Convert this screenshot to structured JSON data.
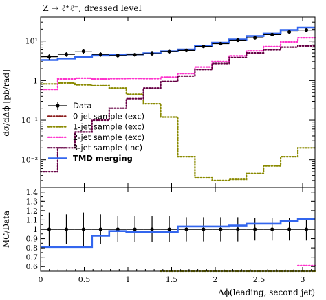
{
  "chart_data": [
    {
      "type": "line",
      "title": "Z → ℓ⁺ℓ⁻, dressed level",
      "ylabel": "dσ/dΔϕ [pb/rad]",
      "xlabel": "",
      "xlim": [
        0,
        3.14159
      ],
      "ylim": [
        0.002,
        40
      ],
      "y_scale": "log",
      "y_ticks": [
        {
          "value": 10,
          "label": "10¹"
        },
        {
          "value": 1,
          "label": "1"
        },
        {
          "value": 0.1,
          "label": "10⁻¹"
        },
        {
          "value": 0.01,
          "label": "10⁻²"
        }
      ],
      "x_edges": [
        0,
        0.1963,
        0.3927,
        0.589,
        0.7854,
        0.9817,
        1.1781,
        1.3744,
        1.5708,
        1.7671,
        1.9635,
        2.1598,
        2.3562,
        2.5525,
        2.7489,
        2.9452,
        3.1416
      ],
      "legend_position": "lower-left",
      "series": [
        {
          "name": "Data",
          "style": "points-errorbars",
          "color": "#000000",
          "x": [
            0.098,
            0.295,
            0.491,
            0.687,
            0.884,
            1.08,
            1.276,
            1.473,
            1.669,
            1.865,
            2.062,
            2.258,
            2.454,
            2.651,
            2.847,
            3.043
          ],
          "y": [
            4.0,
            4.6,
            5.5,
            4.6,
            4.3,
            4.5,
            4.8,
            5.4,
            5.8,
            7.3,
            8.6,
            10.5,
            12.0,
            14.5,
            17.0,
            19.0
          ],
          "y_err": [
            0.6,
            0.6,
            0.7,
            0.6,
            0.5,
            0.5,
            0.6,
            0.6,
            0.6,
            0.7,
            0.8,
            1.0,
            1.1,
            1.3,
            1.5,
            1.7
          ]
        },
        {
          "name": "0-jet sample (exc)",
          "style": "step-dotted",
          "color": "#8b1a1a",
          "y": []
        },
        {
          "name": "1-jet sample (exc)",
          "style": "step-dotted",
          "color": "#8a8a00",
          "y": [
            0.82,
            0.87,
            0.78,
            0.74,
            0.65,
            0.45,
            0.26,
            0.12,
            0.012,
            0.0035,
            0.003,
            0.0032,
            0.0045,
            0.007,
            0.012,
            0.02
          ]
        },
        {
          "name": "2-jet sample (exc)",
          "style": "step-dotted",
          "color": "#ff33cc",
          "y": [
            0.6,
            1.1,
            1.15,
            1.1,
            1.12,
            1.13,
            1.12,
            1.22,
            1.5,
            2.2,
            3.0,
            4.2,
            5.6,
            7.2,
            9.5,
            12.0
          ]
        },
        {
          "name": "3-jet sample (inc)",
          "style": "step-dotted",
          "color": "#660044",
          "y": [
            0.005,
            0.02,
            0.05,
            0.1,
            0.2,
            0.35,
            0.65,
            0.95,
            1.3,
            1.9,
            2.7,
            3.8,
            5.0,
            6.0,
            7.0,
            7.5
          ]
        },
        {
          "name": "TMD merging",
          "style": "step-solid",
          "color": "#3366ee",
          "y": [
            3.3,
            3.6,
            4.0,
            4.3,
            4.4,
            4.6,
            4.9,
            5.5,
            6.1,
            7.4,
            9.1,
            10.9,
            13.3,
            15.4,
            19.0,
            22.0
          ]
        }
      ]
    },
    {
      "type": "line",
      "title": "",
      "ylabel": "MC/Data",
      "xlabel": "Δϕ(leading, second jet)",
      "xlim": [
        0,
        3.14159
      ],
      "ylim": [
        0.55,
        1.45
      ],
      "x_ticks": [
        0,
        0.5,
        1,
        1.5,
        2,
        2.5,
        3
      ],
      "x_tick_labels": [
        "0",
        "0.5",
        "1",
        "1.5",
        "2",
        "2.5",
        "3"
      ],
      "y_ticks": [
        0.6,
        0.7,
        0.8,
        0.9,
        1,
        1.1,
        1.2,
        1.3,
        1.4
      ],
      "y_tick_labels": [
        "0.6",
        "0.7",
        "0.8",
        "0.9",
        "1",
        "1.1",
        "1.2",
        "1.3",
        "1.4"
      ],
      "series": [
        {
          "name": "Data",
          "style": "points-errorbars",
          "color": "#000000",
          "y": [
            1,
            1,
            1,
            1,
            1,
            1,
            1,
            1,
            1,
            1,
            1,
            1,
            1,
            1,
            1,
            1
          ],
          "y_err": [
            0.18,
            0.16,
            0.18,
            0.16,
            0.14,
            0.14,
            0.14,
            0.14,
            0.13,
            0.13,
            0.13,
            0.13,
            0.12,
            0.12,
            0.12,
            0.12
          ]
        },
        {
          "name": "1-jet sample (exc)",
          "style": "step-dotted",
          "color": "#8a8a00",
          "y": [
            null,
            null,
            null,
            null,
            null,
            null,
            null,
            0.52,
            0.5,
            0.5,
            0.5,
            0.5,
            0.5,
            0.5,
            0.5,
            0.5
          ]
        },
        {
          "name": "2-jet sample (exc)",
          "style": "step-dotted",
          "color": "#ff33cc",
          "y": [
            null,
            null,
            null,
            null,
            null,
            null,
            null,
            null,
            null,
            null,
            null,
            null,
            null,
            null,
            null,
            0.61
          ]
        },
        {
          "name": "TMD merging",
          "style": "step-solid",
          "color": "#3366ee",
          "y": [
            0.81,
            0.81,
            0.81,
            0.93,
            0.98,
            0.97,
            0.97,
            0.97,
            1.03,
            1.03,
            1.03,
            1.04,
            1.06,
            1.06,
            1.09,
            1.11
          ]
        }
      ]
    }
  ]
}
